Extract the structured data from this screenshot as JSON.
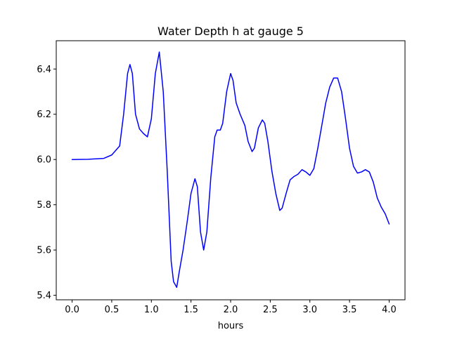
{
  "chart_data": {
    "type": "line",
    "title": "Water Depth h at gauge 5",
    "xlabel": "hours",
    "ylabel": "",
    "xlim": [
      -0.2,
      4.2
    ],
    "ylim": [
      5.38,
      6.525
    ],
    "xticks": [
      0.0,
      0.5,
      1.0,
      1.5,
      2.0,
      2.5,
      3.0,
      3.5,
      4.0
    ],
    "xtick_labels": [
      "0.0",
      "0.5",
      "1.0",
      "1.5",
      "2.0",
      "2.5",
      "3.0",
      "3.5",
      "4.0"
    ],
    "yticks": [
      5.4,
      5.6,
      5.8,
      6.0,
      6.2,
      6.4
    ],
    "ytick_labels": [
      "5.4",
      "5.6",
      "5.8",
      "6.0",
      "6.2",
      "6.4"
    ],
    "grid": false,
    "series": [
      {
        "color": "#0000ff",
        "points": [
          [
            0.0,
            6.0
          ],
          [
            0.2,
            6.001
          ],
          [
            0.4,
            6.005
          ],
          [
            0.5,
            6.02
          ],
          [
            0.6,
            6.06
          ],
          [
            0.65,
            6.2
          ],
          [
            0.7,
            6.38
          ],
          [
            0.73,
            6.42
          ],
          [
            0.76,
            6.38
          ],
          [
            0.8,
            6.2
          ],
          [
            0.85,
            6.135
          ],
          [
            0.9,
            6.115
          ],
          [
            0.95,
            6.1
          ],
          [
            1.0,
            6.18
          ],
          [
            1.05,
            6.38
          ],
          [
            1.1,
            6.475
          ],
          [
            1.15,
            6.3
          ],
          [
            1.2,
            5.95
          ],
          [
            1.25,
            5.55
          ],
          [
            1.28,
            5.46
          ],
          [
            1.32,
            5.435
          ],
          [
            1.35,
            5.5
          ],
          [
            1.4,
            5.6
          ],
          [
            1.45,
            5.72
          ],
          [
            1.5,
            5.85
          ],
          [
            1.55,
            5.915
          ],
          [
            1.58,
            5.88
          ],
          [
            1.62,
            5.68
          ],
          [
            1.66,
            5.6
          ],
          [
            1.7,
            5.68
          ],
          [
            1.75,
            5.92
          ],
          [
            1.8,
            6.1
          ],
          [
            1.83,
            6.13
          ],
          [
            1.87,
            6.13
          ],
          [
            1.9,
            6.16
          ],
          [
            1.95,
            6.3
          ],
          [
            2.0,
            6.38
          ],
          [
            2.03,
            6.35
          ],
          [
            2.07,
            6.25
          ],
          [
            2.12,
            6.2
          ],
          [
            2.18,
            6.15
          ],
          [
            2.22,
            6.08
          ],
          [
            2.27,
            6.035
          ],
          [
            2.3,
            6.05
          ],
          [
            2.35,
            6.14
          ],
          [
            2.4,
            6.175
          ],
          [
            2.43,
            6.16
          ],
          [
            2.47,
            6.08
          ],
          [
            2.52,
            5.95
          ],
          [
            2.57,
            5.85
          ],
          [
            2.62,
            5.775
          ],
          [
            2.65,
            5.785
          ],
          [
            2.7,
            5.85
          ],
          [
            2.75,
            5.91
          ],
          [
            2.8,
            5.925
          ],
          [
            2.85,
            5.935
          ],
          [
            2.9,
            5.955
          ],
          [
            2.95,
            5.945
          ],
          [
            3.0,
            5.93
          ],
          [
            3.05,
            5.96
          ],
          [
            3.1,
            6.05
          ],
          [
            3.15,
            6.15
          ],
          [
            3.2,
            6.25
          ],
          [
            3.25,
            6.32
          ],
          [
            3.3,
            6.36
          ],
          [
            3.35,
            6.36
          ],
          [
            3.4,
            6.3
          ],
          [
            3.45,
            6.18
          ],
          [
            3.5,
            6.05
          ],
          [
            3.55,
            5.97
          ],
          [
            3.6,
            5.94
          ],
          [
            3.65,
            5.945
          ],
          [
            3.7,
            5.955
          ],
          [
            3.75,
            5.945
          ],
          [
            3.8,
            5.9
          ],
          [
            3.85,
            5.83
          ],
          [
            3.9,
            5.79
          ],
          [
            3.95,
            5.76
          ],
          [
            4.0,
            5.715
          ]
        ]
      }
    ]
  }
}
